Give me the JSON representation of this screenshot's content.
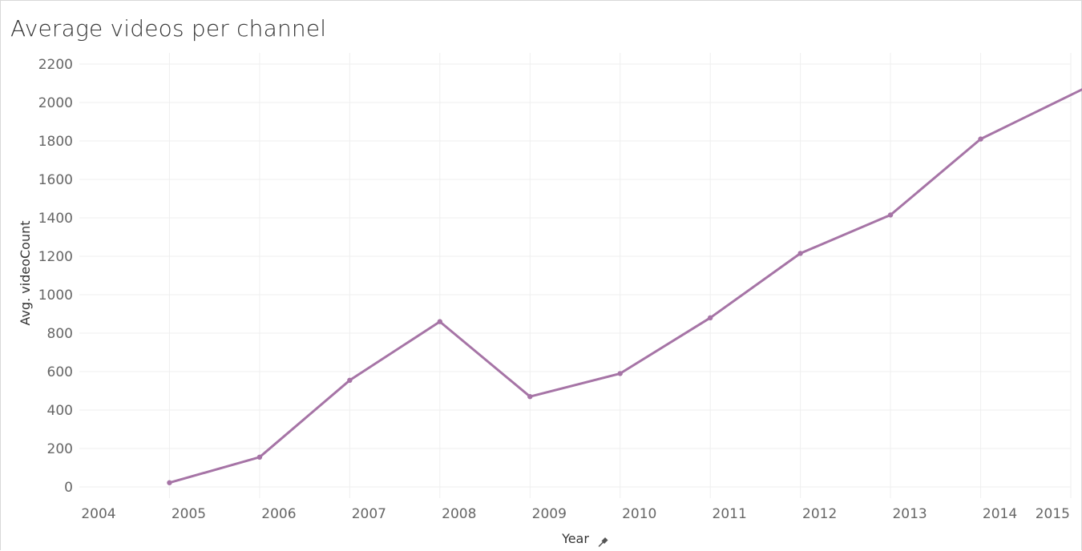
{
  "colors": {
    "line": "#a674a6",
    "grid": "#efefef",
    "tick_text": "#666666",
    "title_text": "#333333"
  },
  "icons": {
    "x_axis_pin": "pin-icon"
  },
  "chart_data": {
    "type": "line",
    "title": "Average videos per channel",
    "xlabel": "Year",
    "ylabel": "Avg. videoCount",
    "x_ticks": [
      "2004",
      "2005",
      "2006",
      "2007",
      "2008",
      "2009",
      "2010",
      "2011",
      "2012",
      "2013",
      "2014",
      "2015"
    ],
    "y_ticks": [
      "0",
      "200",
      "400",
      "600",
      "800",
      "1000",
      "1200",
      "1400",
      "1600",
      "1800",
      "2000",
      "2200"
    ],
    "xlim": [
      2004,
      2015.2
    ],
    "ylim": [
      -50,
      2260
    ],
    "grid": true,
    "series": [
      {
        "x": [
          2005,
          2006,
          2007,
          2008,
          2009,
          2010,
          2011,
          2012,
          2013,
          2014,
          2015.2
        ],
        "y": [
          22,
          155,
          555,
          860,
          470,
          590,
          880,
          1215,
          1415,
          1810,
          2085
        ]
      }
    ]
  }
}
